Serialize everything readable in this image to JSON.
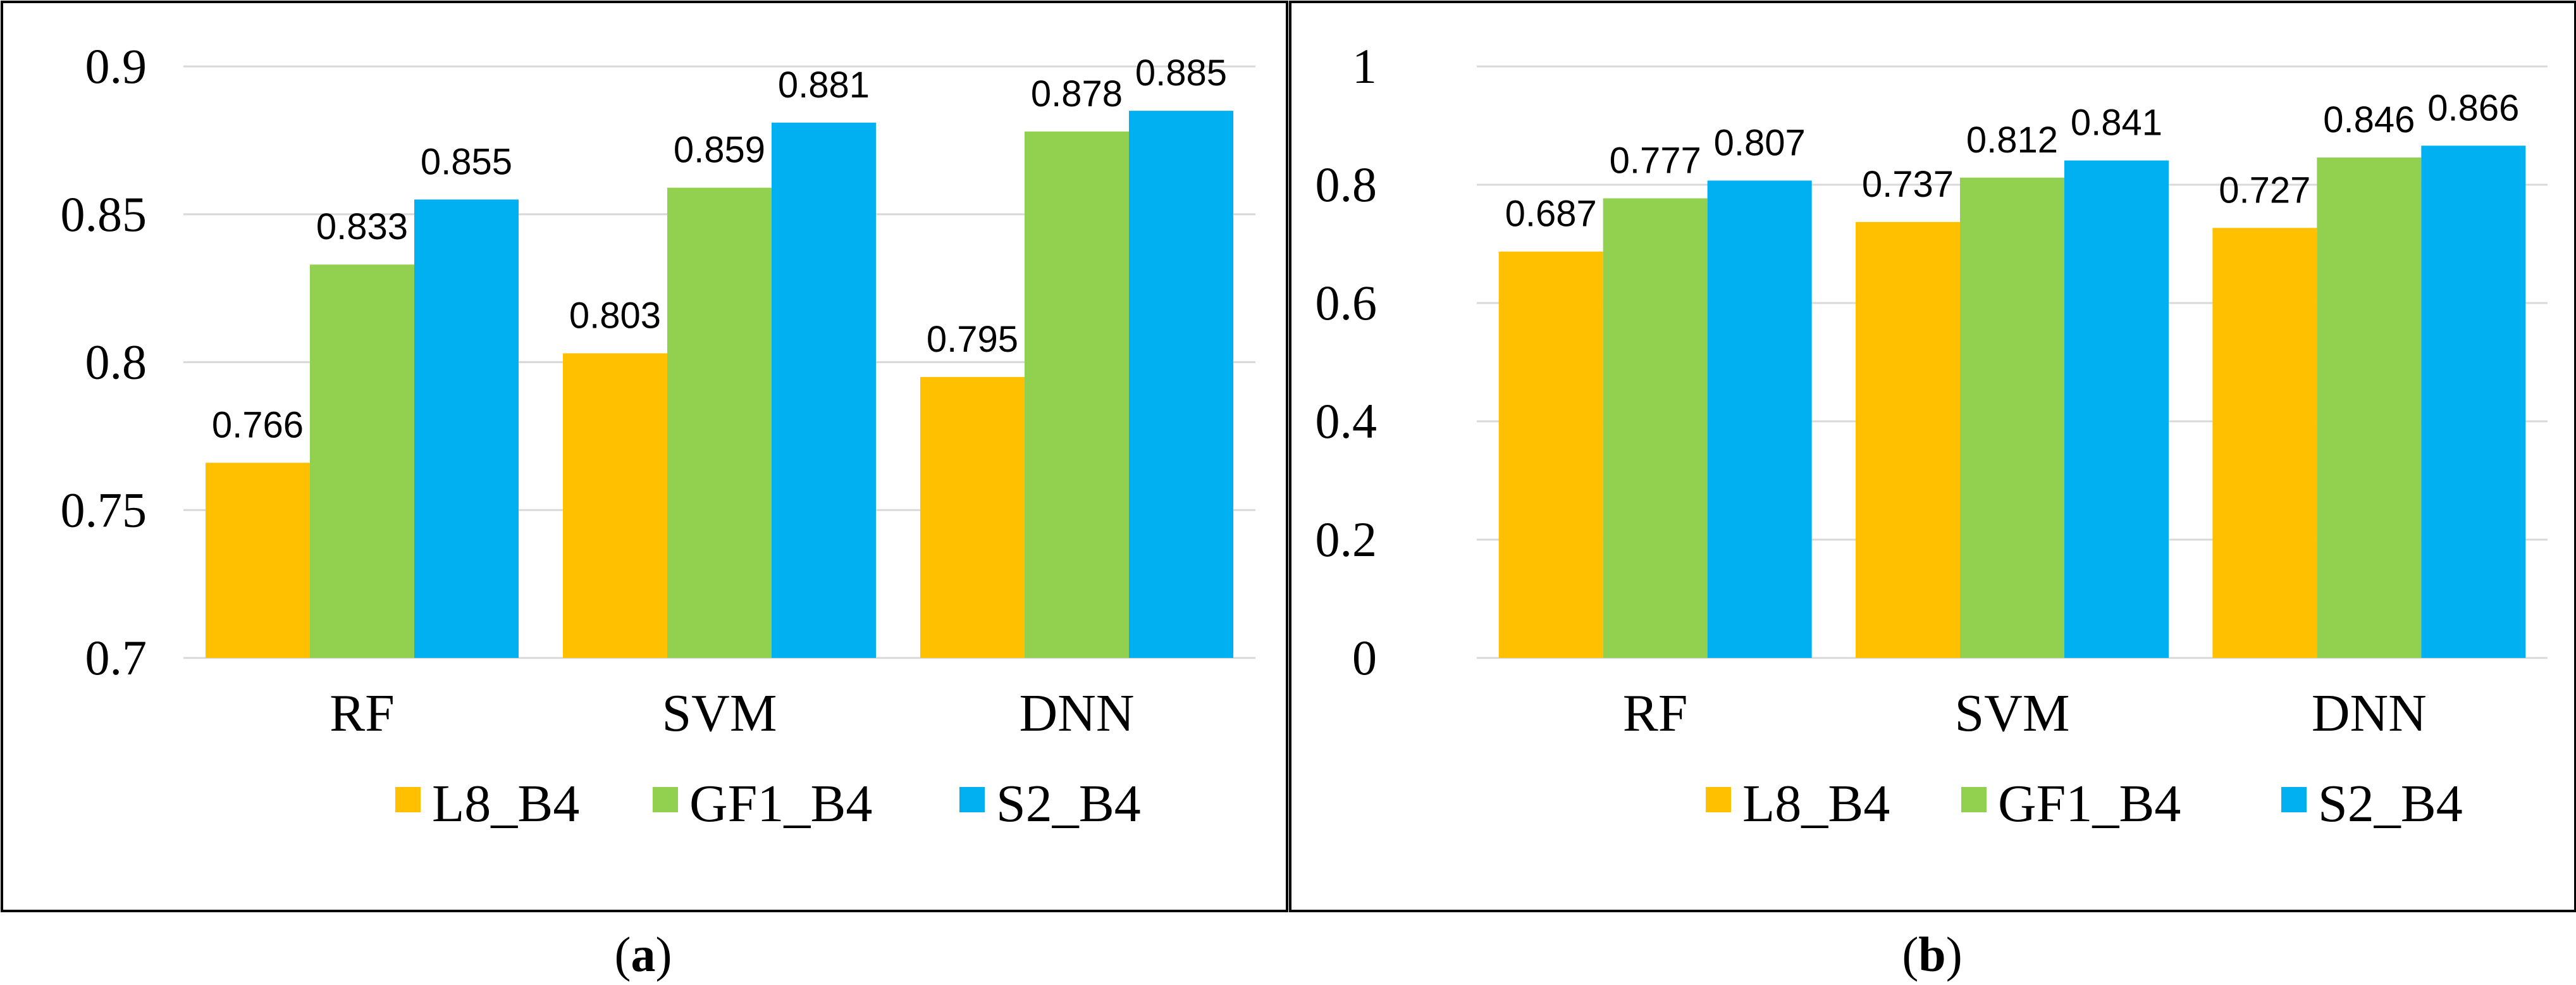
{
  "colors": {
    "L8_B4": "#FFC000",
    "GF1_B4": "#92D050",
    "S2_B4": "#00B0F0",
    "grid": "#D9D9D9",
    "frame": "#000000"
  },
  "chart_data": [
    {
      "type": "bar",
      "panel": "a",
      "caption": {
        "open": "(",
        "letter": "a",
        "close": ")"
      },
      "categories": [
        "RF",
        "SVM",
        "DNN"
      ],
      "series": [
        {
          "name": "L8_B4",
          "values": [
            0.766,
            0.803,
            0.795
          ],
          "labels": [
            "0.766",
            "0.803",
            "0.795"
          ]
        },
        {
          "name": "GF1_B4",
          "values": [
            0.833,
            0.859,
            0.878
          ],
          "labels": [
            "0.833",
            "0.859",
            "0.878"
          ]
        },
        {
          "name": "S2_B4",
          "values": [
            0.855,
            0.881,
            0.885
          ],
          "labels": [
            "0.855",
            "0.881",
            "0.885"
          ]
        }
      ],
      "ylim": [
        0.7,
        0.9
      ],
      "yticks": [
        0.7,
        0.75,
        0.8,
        0.85,
        0.9
      ],
      "ytick_labels": [
        "0.7",
        "0.75",
        "0.8",
        "0.85",
        "0.9"
      ],
      "grid": true,
      "legend": "bottom",
      "title": "",
      "xlabel": "",
      "ylabel": ""
    },
    {
      "type": "bar",
      "panel": "b",
      "caption": {
        "open": "(",
        "letter": "b",
        "close": ")"
      },
      "categories": [
        "RF",
        "SVM",
        "DNN"
      ],
      "series": [
        {
          "name": "L8_B4",
          "values": [
            0.687,
            0.737,
            0.727
          ],
          "labels": [
            "0.687",
            "0.737",
            "0.727"
          ]
        },
        {
          "name": "GF1_B4",
          "values": [
            0.777,
            0.812,
            0.846
          ],
          "labels": [
            "0.777",
            "0.812",
            "0.846"
          ]
        },
        {
          "name": "S2_B4",
          "values": [
            0.807,
            0.841,
            0.866
          ],
          "labels": [
            "0.807",
            "0.841",
            "0.866"
          ]
        }
      ],
      "ylim": [
        0,
        1
      ],
      "yticks": [
        0,
        0.2,
        0.4,
        0.6,
        0.8,
        1
      ],
      "ytick_labels": [
        "0",
        "0.2",
        "0.4",
        "0.6",
        "0.8",
        "1"
      ],
      "grid": true,
      "legend": "bottom",
      "title": "",
      "xlabel": "",
      "ylabel": ""
    }
  ]
}
